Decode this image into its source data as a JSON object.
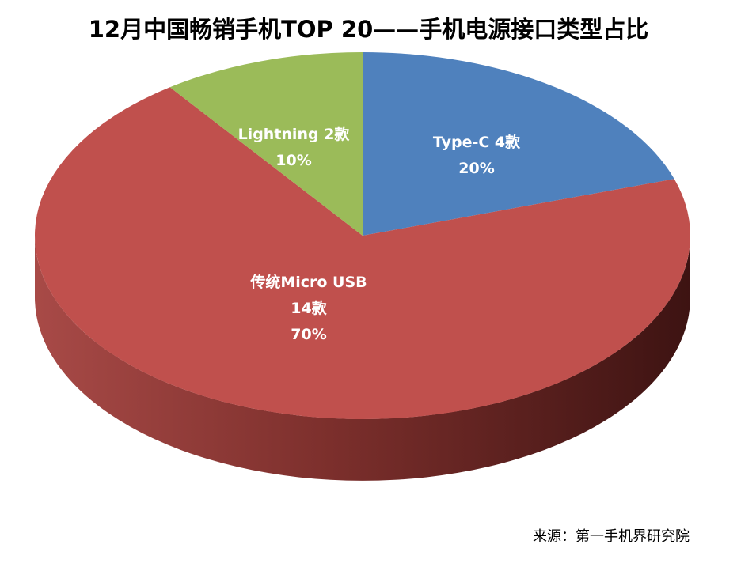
{
  "chart_data": {
    "type": "pie",
    "title": "12月中国畅销手机TOP 20——手机电源接口类型占比",
    "slices": [
      {
        "name": "Type-C",
        "count_label": "4款",
        "count": 4,
        "percent": 20,
        "percent_label": "20%",
        "color": "#4f81bd"
      },
      {
        "name": "传统Micro USB",
        "count_label": "14款",
        "count": 14,
        "percent": 70,
        "percent_label": "70%",
        "color": "#c0504d"
      },
      {
        "name": "Lightning",
        "count_label": "2款",
        "count": 2,
        "percent": 10,
        "percent_label": "10%",
        "color": "#9bbb59"
      }
    ],
    "style": "3d-tilted",
    "legend": "none"
  },
  "source": "来源：第一手机界研究院"
}
